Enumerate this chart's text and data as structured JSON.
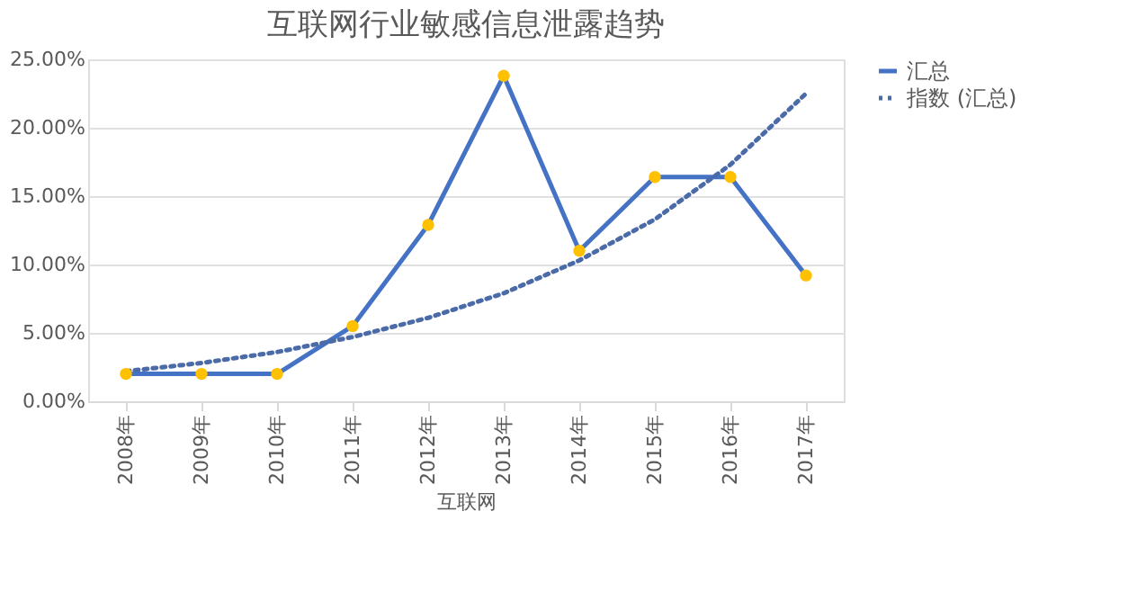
{
  "chart_data": {
    "type": "line",
    "title": "互联网行业敏感信息泄露趋势",
    "xlabel": "互联网",
    "categories": [
      "2008年",
      "2009年",
      "2010年",
      "2011年",
      "2012年",
      "2013年",
      "2014年",
      "2015年",
      "2016年",
      "2017年"
    ],
    "series": [
      {
        "name": "汇总",
        "color": "#4472c4",
        "marker": "circle",
        "line_style": "solid",
        "values": [
          2.0,
          2.0,
          2.0,
          5.5,
          12.9,
          23.8,
          11.0,
          16.4,
          16.4,
          9.2
        ]
      },
      {
        "name": "指数 (汇总)",
        "color": "#4a6aa8",
        "marker": "none",
        "line_style": "dotted",
        "values": [
          2.2,
          2.8,
          3.6,
          4.7,
          6.1,
          7.9,
          10.3,
          13.3,
          17.3,
          22.5
        ]
      }
    ],
    "ylim": [
      0,
      25
    ],
    "yticks": [
      {
        "value": 0,
        "label": "0.00%"
      },
      {
        "value": 5,
        "label": "5.00%"
      },
      {
        "value": 10,
        "label": "10.00%"
      },
      {
        "value": 15,
        "label": "15.00%"
      },
      {
        "value": 20,
        "label": "20.00%"
      },
      {
        "value": 25,
        "label": "25.00%"
      }
    ],
    "grid": "y",
    "legend": "right"
  }
}
